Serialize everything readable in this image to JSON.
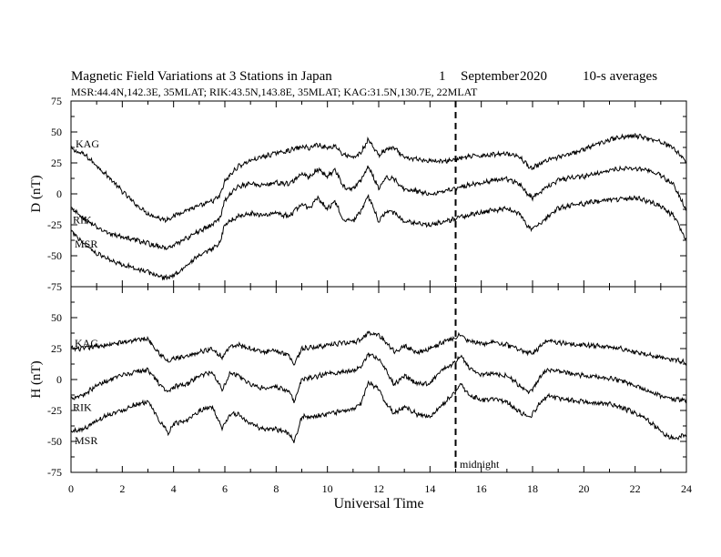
{
  "header": {
    "title": "Magnetic Field Variations at 3 Stations in Japan",
    "day": "1",
    "month": "September",
    "year": "2020",
    "averages": "10-s averages",
    "subtitle": "MSR:44.4N,142.3E, 35MLAT;  RIK:43.5N,143.8E, 35MLAT;  KAG:31.5N,130.7E, 22MLAT"
  },
  "annotations": {
    "midnight_label": "midnight",
    "midnight_time": 15
  },
  "chart_data": [
    {
      "type": "line",
      "panel": "D",
      "ylabel": "D (nT)",
      "xlabel": "",
      "ylim": [
        -75,
        75
      ],
      "yticks": [
        "75",
        "50",
        "25",
        "0",
        "-25",
        "-50",
        "-75"
      ],
      "xlim": [
        0,
        24
      ],
      "series": [
        {
          "name": "KAG",
          "x": [
            0,
            0.5,
            1,
            1.5,
            2,
            2.5,
            3,
            3.5,
            3.7,
            4,
            4.5,
            5,
            5.5,
            5.8,
            6,
            6.5,
            7,
            7.5,
            8,
            8.5,
            9,
            9.3,
            9.6,
            10,
            10.3,
            10.6,
            11,
            11.3,
            11.6,
            12,
            12.3,
            12.6,
            13,
            13.5,
            14,
            14.5,
            15,
            15.5,
            16,
            16.5,
            17,
            17.5,
            17.8,
            18,
            18.5,
            19,
            19.5,
            20,
            20.5,
            21,
            21.5,
            22,
            22.5,
            23,
            23.5,
            24
          ],
          "values": [
            36,
            32,
            23,
            13,
            2,
            -8,
            -16,
            -20,
            -21,
            -18,
            -13,
            -10,
            -6,
            -2,
            10,
            22,
            27,
            30,
            33,
            35,
            38,
            37,
            40,
            37,
            39,
            32,
            29,
            33,
            44,
            31,
            36,
            37,
            29,
            28,
            27,
            26,
            28,
            30,
            31,
            32,
            33,
            30,
            23,
            21,
            26,
            30,
            32,
            36,
            40,
            44,
            46,
            47,
            45,
            42,
            37,
            26
          ]
        },
        {
          "name": "RIK",
          "x": [
            0,
            0.5,
            1,
            1.5,
            2,
            2.5,
            3,
            3.5,
            3.7,
            4,
            4.5,
            5,
            5.5,
            5.8,
            6,
            6.5,
            7,
            7.5,
            8,
            8.5,
            9,
            9.3,
            9.6,
            10,
            10.3,
            10.6,
            11,
            11.3,
            11.6,
            12,
            12.3,
            12.6,
            13,
            13.5,
            14,
            14.5,
            15,
            15.5,
            16,
            16.5,
            17,
            17.5,
            17.8,
            18,
            18.5,
            19,
            19.5,
            20,
            20.5,
            21,
            21.5,
            22,
            22.5,
            23,
            23.5,
            24
          ],
          "values": [
            -12,
            -20,
            -27,
            -32,
            -35,
            -37,
            -40,
            -43,
            -44,
            -42,
            -36,
            -30,
            -25,
            -20,
            -5,
            6,
            8,
            7,
            9,
            8,
            16,
            13,
            20,
            14,
            20,
            6,
            4,
            11,
            22,
            5,
            13,
            12,
            4,
            2,
            0,
            2,
            4,
            7,
            9,
            11,
            12,
            8,
            0,
            -3,
            5,
            11,
            13,
            14,
            17,
            19,
            20,
            21,
            19,
            15,
            7,
            -13
          ]
        },
        {
          "name": "MSR",
          "x": [
            0,
            0.5,
            1,
            1.5,
            2,
            2.5,
            3,
            3.5,
            3.7,
            4,
            4.5,
            5,
            5.5,
            5.8,
            6,
            6.5,
            7,
            7.5,
            8,
            8.5,
            9,
            9.3,
            9.6,
            10,
            10.3,
            10.6,
            11,
            11.3,
            11.6,
            12,
            12.3,
            12.6,
            13,
            13.5,
            14,
            14.5,
            15,
            15.5,
            16,
            16.5,
            17,
            17.5,
            17.8,
            18,
            18.5,
            19,
            19.5,
            20,
            20.5,
            21,
            21.5,
            22,
            22.5,
            23,
            23.5,
            24
          ],
          "values": [
            -30,
            -40,
            -48,
            -53,
            -57,
            -60,
            -63,
            -67,
            -68,
            -66,
            -58,
            -50,
            -45,
            -40,
            -25,
            -18,
            -16,
            -17,
            -16,
            -18,
            -8,
            -12,
            -3,
            -12,
            -6,
            -20,
            -22,
            -14,
            -2,
            -22,
            -14,
            -15,
            -22,
            -24,
            -25,
            -23,
            -20,
            -17,
            -15,
            -13,
            -12,
            -16,
            -26,
            -29,
            -20,
            -12,
            -9,
            -8,
            -6,
            -5,
            -4,
            -3,
            -6,
            -10,
            -18,
            -37
          ]
        }
      ]
    },
    {
      "type": "line",
      "panel": "H",
      "ylabel": "H (nT)",
      "xlabel": "Universal Time",
      "ylim": [
        -75,
        75
      ],
      "yticks": [
        "",
        "50",
        "25",
        "0",
        "-25",
        "-50",
        "-75"
      ],
      "xlim": [
        0,
        24
      ],
      "xticks": [
        "0",
        "2",
        "4",
        "6",
        "8",
        "10",
        "12",
        "14",
        "16",
        "18",
        "20",
        "22",
        "24"
      ],
      "series": [
        {
          "name": "KAG",
          "x": [
            0,
            0.5,
            1,
            1.5,
            2,
            2.5,
            3,
            3.5,
            3.8,
            4,
            4.5,
            5,
            5.5,
            5.9,
            6.2,
            6.5,
            7,
            7.5,
            8,
            8.5,
            8.7,
            9,
            9.5,
            10,
            10.5,
            11,
            11.3,
            11.6,
            12,
            12.3,
            12.6,
            13,
            13.5,
            14,
            14.5,
            15,
            15.2,
            15.5,
            16,
            16.5,
            17,
            17.5,
            17.8,
            18,
            18.3,
            18.6,
            19,
            19.5,
            20,
            20.5,
            21,
            21.5,
            22,
            22.5,
            23,
            23.5,
            24
          ],
          "values": [
            25,
            25,
            27,
            28,
            30,
            32,
            33,
            20,
            14,
            17,
            18,
            22,
            25,
            18,
            27,
            28,
            25,
            22,
            23,
            20,
            12,
            25,
            26,
            28,
            29,
            30,
            32,
            38,
            36,
            30,
            23,
            27,
            22,
            25,
            30,
            34,
            36,
            31,
            29,
            30,
            28,
            24,
            22,
            21,
            27,
            32,
            30,
            29,
            28,
            27,
            26,
            25,
            22,
            20,
            18,
            16,
            14
          ]
        },
        {
          "name": "RIK",
          "x": [
            0,
            0.5,
            1,
            1.5,
            2,
            2.5,
            3,
            3.5,
            3.8,
            4,
            4.5,
            5,
            5.5,
            5.9,
            6.2,
            6.5,
            7,
            7.5,
            8,
            8.5,
            8.7,
            9,
            9.5,
            10,
            10.5,
            11,
            11.3,
            11.6,
            12,
            12.3,
            12.6,
            13,
            13.5,
            14,
            14.5,
            15,
            15.2,
            15.5,
            16,
            16.5,
            17,
            17.5,
            17.8,
            18,
            18.3,
            18.6,
            19,
            19.5,
            20,
            20.5,
            21,
            21.5,
            22,
            22.5,
            23,
            23.5,
            24
          ],
          "values": [
            -15,
            -12,
            -5,
            0,
            3,
            6,
            8,
            -5,
            -10,
            -6,
            -4,
            3,
            6,
            -8,
            5,
            4,
            -4,
            -7,
            -6,
            -10,
            -18,
            0,
            2,
            5,
            6,
            7,
            10,
            20,
            17,
            7,
            -4,
            3,
            -3,
            -3,
            8,
            14,
            19,
            10,
            4,
            5,
            3,
            -5,
            -10,
            -8,
            2,
            8,
            7,
            5,
            3,
            2,
            1,
            -1,
            -5,
            -9,
            -13,
            -16,
            -17
          ]
        },
        {
          "name": "MSR",
          "x": [
            0,
            0.5,
            1,
            1.5,
            2,
            2.5,
            3,
            3.5,
            3.8,
            4,
            4.5,
            5,
            5.5,
            5.9,
            6.2,
            6.5,
            7,
            7.5,
            8,
            8.5,
            8.7,
            9,
            9.5,
            10,
            10.5,
            11,
            11.3,
            11.6,
            12,
            12.3,
            12.6,
            13,
            13.5,
            14,
            14.5,
            15,
            15.2,
            15.5,
            16,
            16.5,
            17,
            17.5,
            17.8,
            18,
            18.3,
            18.6,
            19,
            19.5,
            20,
            20.5,
            21,
            21.5,
            22,
            22.5,
            23,
            23.5,
            24
          ],
          "values": [
            -42,
            -40,
            -33,
            -28,
            -25,
            -20,
            -18,
            -35,
            -43,
            -36,
            -33,
            -25,
            -22,
            -40,
            -28,
            -28,
            -36,
            -40,
            -40,
            -44,
            -50,
            -30,
            -30,
            -28,
            -26,
            -24,
            -20,
            -2,
            -8,
            -20,
            -27,
            -22,
            -28,
            -30,
            -20,
            -10,
            -3,
            -12,
            -17,
            -15,
            -18,
            -26,
            -30,
            -28,
            -18,
            -13,
            -15,
            -17,
            -18,
            -19,
            -20,
            -23,
            -27,
            -33,
            -42,
            -48,
            -45
          ]
        }
      ]
    }
  ]
}
